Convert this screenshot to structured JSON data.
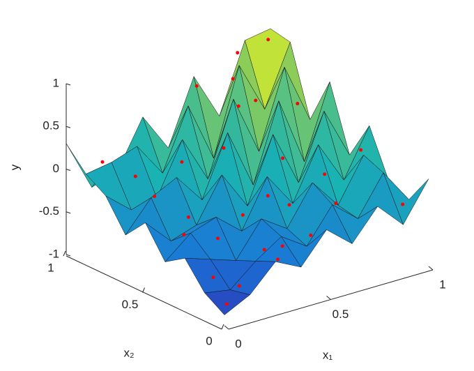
{
  "chart_data": {
    "type": "surface",
    "xlabel": "x₁",
    "ylabel": "x₂",
    "zlabel": "y",
    "x": [
      0,
      0.125,
      0.25,
      0.375,
      0.5,
      0.625,
      0.75,
      0.875,
      1
    ],
    "y": [
      0,
      0.125,
      0.25,
      0.375,
      0.5,
      0.625,
      0.75,
      0.875,
      1
    ],
    "z": [
      [
        -0.85,
        -0.7,
        -0.4,
        -0.55,
        -0.2,
        -0.45,
        -0.1,
        -0.4,
        0.05
      ],
      [
        -0.7,
        -0.75,
        -0.5,
        -0.3,
        -0.5,
        -0.1,
        -0.35,
        0.1,
        -0.3
      ],
      [
        -0.4,
        -0.5,
        -0.6,
        -0.2,
        -0.4,
        0.05,
        -0.3,
        0.2,
        -0.2
      ],
      [
        -0.55,
        -0.3,
        -0.2,
        -0.45,
        0.1,
        -0.3,
        0.3,
        -0.2,
        0.35
      ],
      [
        -0.2,
        -0.5,
        -0.4,
        0.1,
        -0.35,
        0.4,
        -0.25,
        0.5,
        -0.1
      ],
      [
        -0.45,
        -0.1,
        0.05,
        -0.3,
        0.4,
        -0.3,
        0.6,
        -0.2,
        0.65
      ],
      [
        -0.1,
        -0.35,
        -0.3,
        0.3,
        -0.25,
        0.6,
        -0.1,
        0.8,
        0.1
      ],
      [
        0.05,
        0.1,
        0.2,
        -0.2,
        0.5,
        -0.2,
        0.8,
        0.2,
        0.9
      ],
      [
        0.3,
        -0.3,
        -0.2,
        0.35,
        -0.1,
        0.65,
        0.1,
        0.9,
        0.95
      ]
    ],
    "colormap": "parula",
    "points": {
      "color": "#ff0000",
      "x": [
        0.05,
        0.1,
        0.15,
        0.2,
        0.3,
        0.35,
        0.4,
        0.5,
        0.55,
        0.6,
        0.7,
        0.75,
        0.8,
        0.9,
        0.95,
        0.1,
        0.2,
        0.3,
        0.45,
        0.6,
        0.65,
        0.85,
        0.95,
        0.25,
        0.5,
        0.7,
        0.9,
        0.15,
        0.4,
        0.8
      ],
      "y": [
        0.05,
        0.2,
        0.1,
        0.3,
        0.05,
        0.2,
        0.4,
        0.1,
        0.3,
        0.5,
        0.2,
        0.6,
        0.4,
        0.7,
        0.1,
        0.9,
        0.7,
        0.95,
        0.85,
        0.95,
        0.75,
        0.9,
        0.95,
        0.55,
        0.65,
        0.85,
        0.3,
        0.45,
        0.15,
        0.95
      ],
      "z": [
        -0.8,
        -0.65,
        -0.7,
        -0.35,
        -0.45,
        -0.5,
        -0.3,
        -0.35,
        -0.2,
        -0.3,
        -0.2,
        -0.05,
        -0.1,
        0.4,
        -0.3,
        0.1,
        -0.2,
        -0.25,
        -0.1,
        0.6,
        0.5,
        0.3,
        0.9,
        -0.35,
        0.2,
        0.7,
        0.2,
        -0.4,
        -0.45,
        0.85
      ]
    },
    "xlim": [
      0,
      1
    ],
    "ylim": [
      0,
      1
    ],
    "zlim": [
      -1,
      1
    ],
    "xticks": [
      0,
      0.5,
      1
    ],
    "yticks": [
      0,
      0.5,
      1
    ],
    "zticks": [
      -1,
      -0.5,
      0,
      0.5,
      1
    ]
  }
}
